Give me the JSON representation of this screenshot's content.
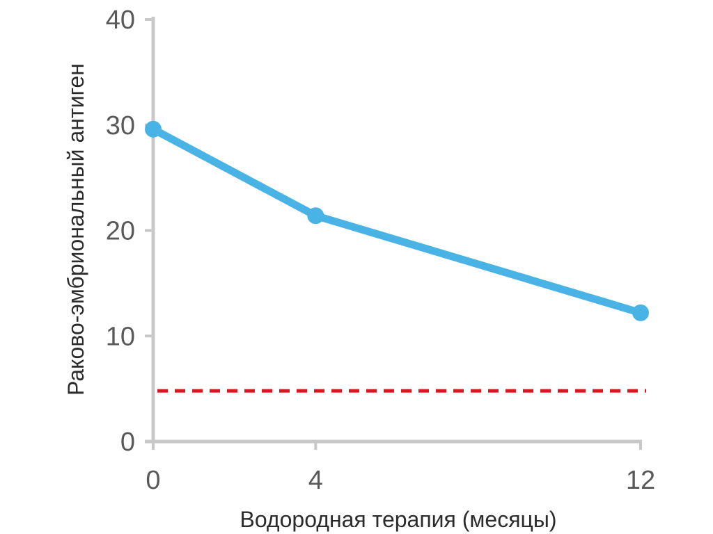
{
  "chart_data": {
    "type": "line",
    "title": "",
    "xlabel": "Водородная терапия (месяцы)",
    "ylabel": "Раково-эмбриональный антиген",
    "x": [
      0,
      4,
      12
    ],
    "x_ticks": [
      0,
      4,
      12
    ],
    "y_ticks": [
      0,
      10,
      20,
      30,
      40
    ],
    "ylim": [
      0,
      40
    ],
    "grid": false,
    "legend": "none",
    "series": [
      {
        "values": [
          29.6,
          21.4,
          12.2
        ],
        "color": "#4ab3e6",
        "marker": "circle"
      }
    ],
    "reference_lines": [
      {
        "y": 4.8,
        "style": "dashed",
        "color": "#d9161f"
      }
    ],
    "axis_color": "#c8c8c8"
  }
}
